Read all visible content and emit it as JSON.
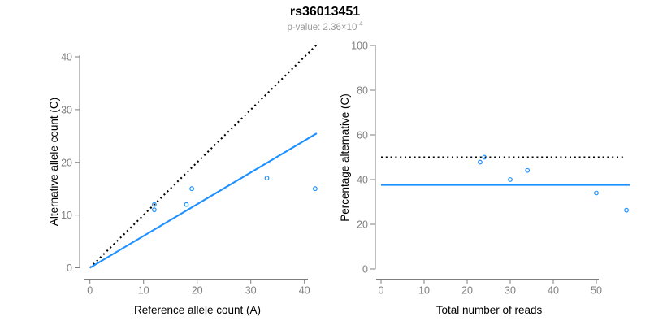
{
  "header": {
    "title": "rs36013451",
    "p_value_label": "p-value: 2.36×10",
    "p_value_exponent": "-4"
  },
  "colors": {
    "accent_blue": "#1E90FF",
    "axis_gray": "#7f7f7f",
    "subtitle_gray": "#9a9a9a",
    "dotted_black": "#000000"
  },
  "chart_data": [
    {
      "type": "scatter",
      "title": "rs36013451",
      "xlabel": "Reference allele count (A)",
      "ylabel": "Alternative allele count (C)",
      "xlim": [
        0,
        42.5
      ],
      "ylim": [
        0,
        42.5
      ],
      "xticks": [
        0,
        10,
        20,
        30,
        40
      ],
      "yticks": [
        0,
        10,
        20,
        30,
        40
      ],
      "grid": false,
      "legend": null,
      "point_color": "#1E90FF",
      "points": [
        [
          12,
          11
        ],
        [
          12,
          12
        ],
        [
          18,
          12
        ],
        [
          19,
          15
        ],
        [
          33,
          17
        ],
        [
          42,
          15
        ]
      ],
      "lines": [
        {
          "name": "identity-line",
          "style": "dotted",
          "color": "#000000",
          "x1": 0,
          "y1": 0,
          "x2": 42.4,
          "y2": 42.4
        },
        {
          "name": "fit-line",
          "style": "solid",
          "color": "#1E90FF",
          "x1": 0,
          "y1": 0,
          "x2": 42.3,
          "y2": 25.5
        }
      ]
    },
    {
      "type": "scatter",
      "title": "rs36013451",
      "xlabel": "Total number of reads",
      "ylabel": "Percentage alternative (C)",
      "xlim": [
        0,
        58
      ],
      "ylim": [
        0,
        100
      ],
      "xticks": [
        0,
        10,
        20,
        30,
        40,
        50
      ],
      "yticks": [
        0,
        20,
        40,
        60,
        80,
        100
      ],
      "grid": false,
      "legend": null,
      "point_color": "#1E90FF",
      "points": [
        [
          23,
          47.8
        ],
        [
          24,
          50
        ],
        [
          30,
          40
        ],
        [
          34,
          44.1
        ],
        [
          50,
          34
        ],
        [
          57,
          26.3
        ]
      ],
      "lines": [
        {
          "name": "expected-50pct-line",
          "style": "dotted",
          "color": "#000000",
          "x1": 0,
          "y1": 50,
          "x2": 56.3,
          "y2": 50
        },
        {
          "name": "observed-ratio-line",
          "style": "solid",
          "color": "#1E90FF",
          "x1": 0,
          "y1": 37.6,
          "x2": 57.8,
          "y2": 37.6
        }
      ]
    }
  ]
}
